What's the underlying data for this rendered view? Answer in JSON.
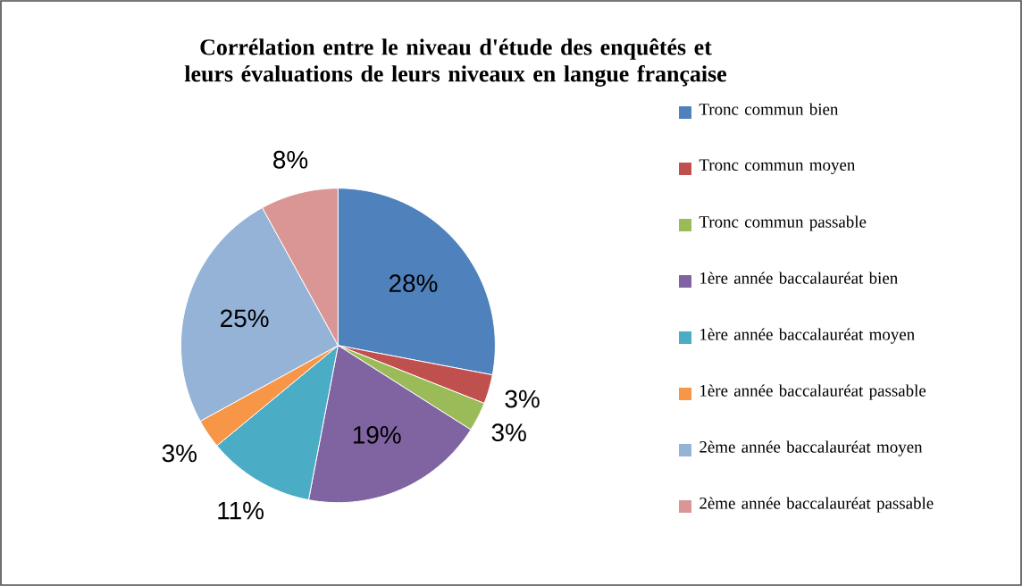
{
  "chart_data": {
    "type": "pie",
    "title": "Corrélation entre  le niveau d'étude des enquêtés et leurs évaluations de leurs niveaux en langue française",
    "categories": [
      "Tronc commun bien",
      "Tronc commun moyen",
      "Tronc commun passable",
      "1ère année baccalauréat bien",
      "1ère année baccalauréat moyen",
      "1ère année baccalauréat passable",
      "2ème année baccalauréat moyen",
      "2ème année baccalauréat passable"
    ],
    "values": [
      28,
      3,
      3,
      19,
      11,
      3,
      25,
      8
    ],
    "value_labels": [
      "28%",
      "3%",
      "3%",
      "19%",
      "11%",
      "3%",
      "25%",
      "8%"
    ],
    "colors": [
      "#4f81bd",
      "#c0504d",
      "#9bbb59",
      "#8064a2",
      "#4bacc6",
      "#f79646",
      "#95b3d7",
      "#d99694"
    ],
    "legend": "right"
  }
}
